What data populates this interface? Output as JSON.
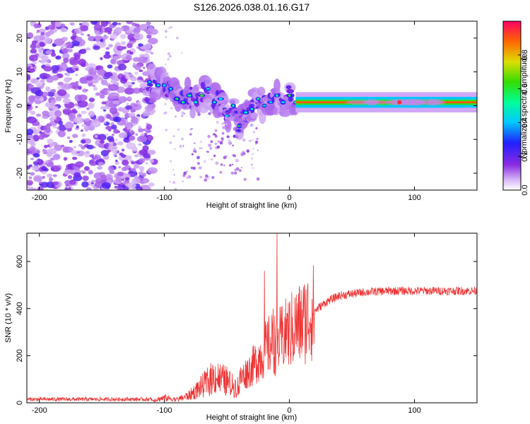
{
  "title": "S126.2026.038.01.16.G17",
  "chart_data": [
    {
      "type": "heatmap",
      "name": "spectrogram",
      "xlabel": "Height of straight line (km)",
      "ylabel": "Frequency (Hz)",
      "xlim": [
        -210,
        150
      ],
      "ylim": [
        -25,
        25
      ],
      "x_ticks": [
        "-200",
        "-100",
        "0",
        "100"
      ],
      "x_tick_values": [
        -200,
        -100,
        0,
        100
      ],
      "y_ticks": [
        "20",
        "10",
        "0",
        "-10",
        "-20"
      ],
      "y_tick_values": [
        20,
        10,
        0,
        -10,
        -20
      ],
      "colorbar": {
        "label": "Normalized spectral amplitude",
        "range": [
          0.0,
          1.0
        ],
        "ticks": [
          "0.0",
          "0.2",
          "0.4",
          "0.6",
          "0.8"
        ],
        "tick_values": [
          0.0,
          0.2,
          0.4,
          0.6,
          0.8
        ]
      },
      "features": {
        "noise_region_x": [
          -210,
          -100
        ],
        "line_start_x": 5,
        "line_frequency": 1,
        "ridge": [
          [
            -112,
            7
          ],
          [
            -105,
            6
          ],
          [
            -100,
            6
          ],
          [
            -95,
            5
          ],
          [
            -90,
            2
          ],
          [
            -85,
            1
          ],
          [
            -80,
            3
          ],
          [
            -75,
            1
          ],
          [
            -70,
            3
          ],
          [
            -65,
            5
          ],
          [
            -60,
            1
          ],
          [
            -55,
            2
          ],
          [
            -50,
            -3
          ],
          [
            -45,
            0
          ],
          [
            -40,
            -6
          ],
          [
            -35,
            -2
          ],
          [
            -30,
            -1
          ],
          [
            -25,
            2
          ],
          [
            -20,
            0
          ],
          [
            -15,
            1
          ],
          [
            -10,
            3
          ],
          [
            -5,
            1
          ],
          [
            0,
            3
          ],
          [
            5,
            1
          ]
        ]
      }
    },
    {
      "type": "line",
      "name": "snr",
      "xlabel": "Height of straight line (km)",
      "ylabel": "SNR (10 * v/v)",
      "xlim": [
        -210,
        150
      ],
      "ylim": [
        0,
        720
      ],
      "x_ticks": [
        "-200",
        "-100",
        "0",
        "100"
      ],
      "x_tick_values": [
        -200,
        -100,
        0,
        100
      ],
      "y_ticks": [
        "0",
        "200",
        "400",
        "600"
      ],
      "y_tick_values": [
        0,
        200,
        400,
        600
      ],
      "color": "#ee3333",
      "envelope": [
        [
          -210,
          15
        ],
        [
          -110,
          15
        ],
        [
          -100,
          30
        ],
        [
          -90,
          20
        ],
        [
          -80,
          45
        ],
        [
          -70,
          100
        ],
        [
          -60,
          160
        ],
        [
          -50,
          130
        ],
        [
          -45,
          100
        ],
        [
          -40,
          100
        ],
        [
          -30,
          150
        ],
        [
          -20,
          220
        ],
        [
          -15,
          250
        ],
        [
          -10,
          250
        ],
        [
          -5,
          280
        ],
        [
          0,
          300
        ],
        [
          10,
          340
        ],
        [
          20,
          390
        ],
        [
          30,
          430
        ],
        [
          40,
          455
        ],
        [
          60,
          470
        ],
        [
          80,
          475
        ],
        [
          100,
          475
        ],
        [
          150,
          475
        ]
      ],
      "spikes": [
        [
          -20,
          560
        ],
        [
          -13,
          400
        ],
        [
          -10,
          720
        ],
        [
          -7,
          310
        ],
        [
          -2,
          380
        ],
        [
          5,
          330
        ]
      ]
    }
  ]
}
